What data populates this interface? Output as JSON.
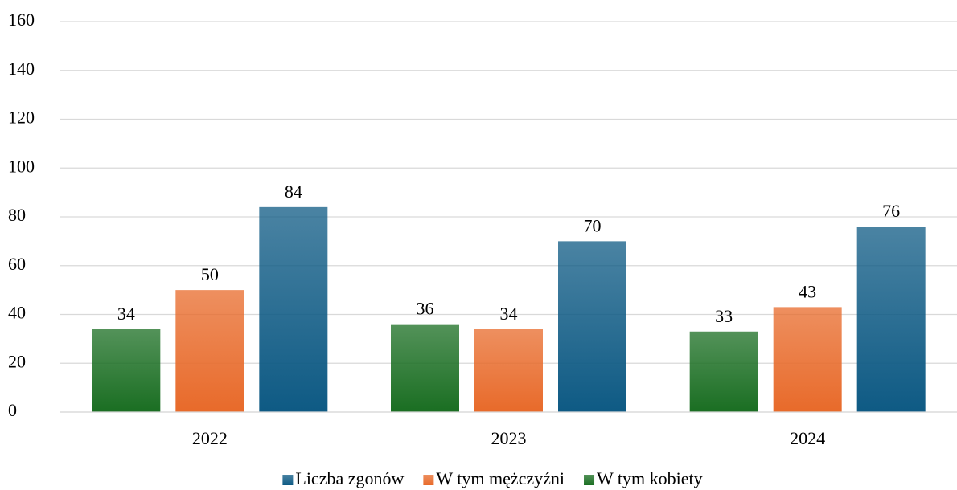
{
  "chart_data": {
    "type": "bar",
    "categories": [
      "2022",
      "2023",
      "2024"
    ],
    "series": [
      {
        "name": "Liczba zgonów",
        "color": "#0e5a84",
        "values": [
          84,
          70,
          76
        ]
      },
      {
        "name": "W tym mężczyźni",
        "color": "#e86a2a",
        "values": [
          50,
          34,
          43
        ]
      },
      {
        "name": "W tym kobiety",
        "color": "#1a6e22",
        "values": [
          34,
          36,
          33
        ]
      }
    ],
    "ylim": [
      0,
      160
    ],
    "yticks": [
      0,
      20,
      40,
      60,
      80,
      100,
      120,
      140,
      160
    ],
    "grid": true,
    "legend": "bottom"
  }
}
